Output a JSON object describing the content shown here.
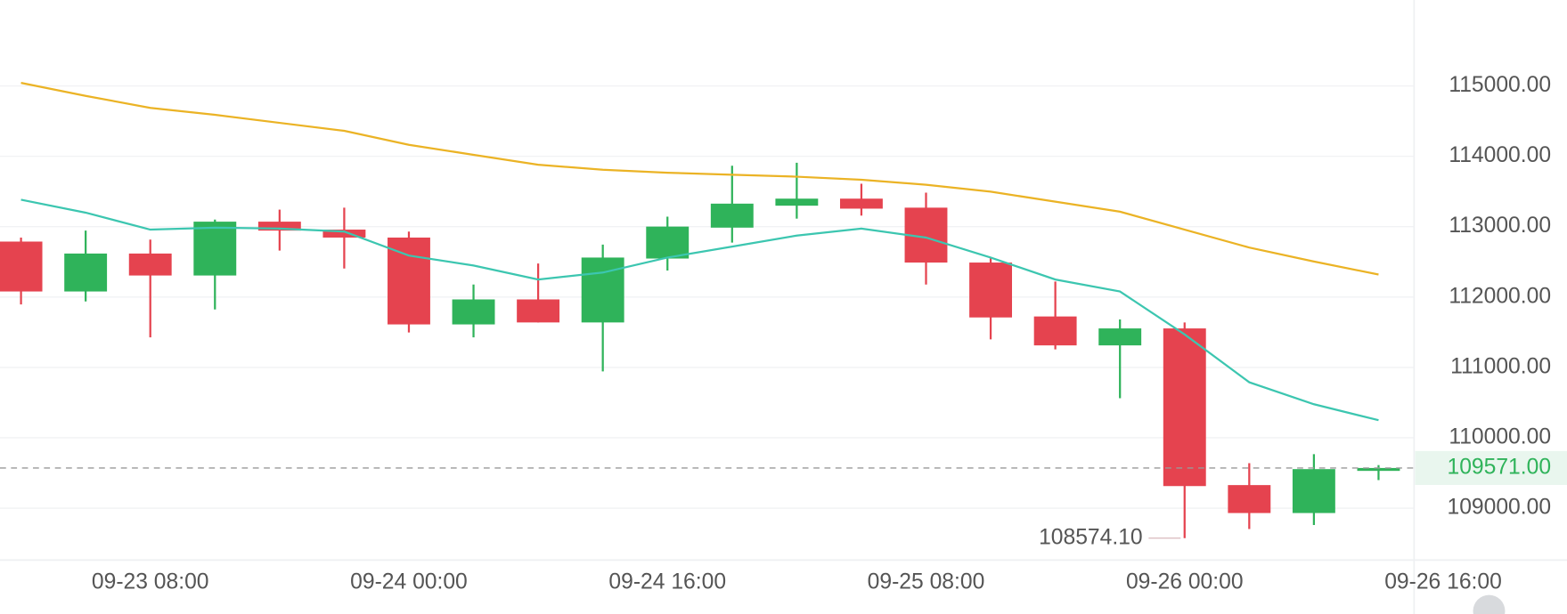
{
  "chart_data": {
    "type": "candlestick",
    "xlim": [
      -0.325,
      21.55
    ],
    "xticks": [
      {
        "value": 2,
        "label": "09-23 08:00"
      },
      {
        "value": 6,
        "label": "09-24 00:00"
      },
      {
        "value": 10,
        "label": "09-24 16:00"
      },
      {
        "value": 14,
        "label": "09-25 08:00"
      },
      {
        "value": 18,
        "label": "09-26 00:00"
      },
      {
        "value": 22,
        "label": "09-26 16:00"
      }
    ],
    "ylim": [
      108277,
      116220
    ],
    "yticks": [
      {
        "value": 109000,
        "label": "109000.00"
      },
      {
        "value": 110000,
        "label": "110000.00"
      },
      {
        "value": 111000,
        "label": "111000.00"
      },
      {
        "value": 112000,
        "label": "112000.00"
      },
      {
        "value": 113000,
        "label": "113000.00"
      },
      {
        "value": 114000,
        "label": "114000.00"
      },
      {
        "value": 115000,
        "label": "115000.00"
      }
    ],
    "grid": true,
    "up_color": "#2fb35a",
    "down_color": "#e5434f",
    "open": [
      112788,
      112079,
      112618,
      112306,
      113071,
      112958,
      112845,
      111611,
      111966,
      111639,
      112547,
      112986,
      113298,
      113398,
      113270,
      112490,
      111724,
      111313,
      111554,
      109328,
      108931,
      109530
    ],
    "high": [
      112845,
      112944,
      112816,
      113100,
      113242,
      113270,
      112930,
      112178,
      112476,
      112745,
      113142,
      113866,
      113908,
      113610,
      113483,
      112561,
      112221,
      111682,
      111639,
      109640,
      109768,
      109612
    ],
    "low": [
      111895,
      111937,
      111427,
      111824,
      112660,
      112405,
      111497,
      111427,
      111639,
      110944,
      112377,
      112774,
      113114,
      113157,
      112178,
      111398,
      111256,
      110562,
      108574.1,
      108704,
      108761,
      109399
    ],
    "close": [
      112079,
      112618,
      112306,
      113071,
      112944,
      112845,
      111611,
      111966,
      111639,
      112561,
      113001,
      113327,
      113398,
      113256,
      112490,
      111710,
      111313,
      111554,
      109314,
      108931,
      109555,
      109571
    ],
    "ma_lines": [
      {
        "color": "#ebb325",
        "values": [
          115043,
          114858,
          114688,
          114589,
          114475,
          114362,
          114163,
          114021,
          113880,
          113809,
          113766,
          113738,
          113710,
          113667,
          113596,
          113497,
          113355,
          113213,
          112958,
          112703,
          112505,
          112320
        ]
      },
      {
        "color": "#3cc6b0",
        "values": [
          113383,
          113199,
          112958,
          112986,
          112972,
          112930,
          112589,
          112448,
          112249,
          112348,
          112561,
          112717,
          112873,
          112972,
          112845,
          112561,
          112249,
          112079,
          111469,
          110789,
          110477,
          110250
        ]
      }
    ],
    "last_price": {
      "value": 109571,
      "label": "109571.00"
    },
    "low_annotation": {
      "value": 108574.1,
      "label": "108574.10"
    }
  }
}
